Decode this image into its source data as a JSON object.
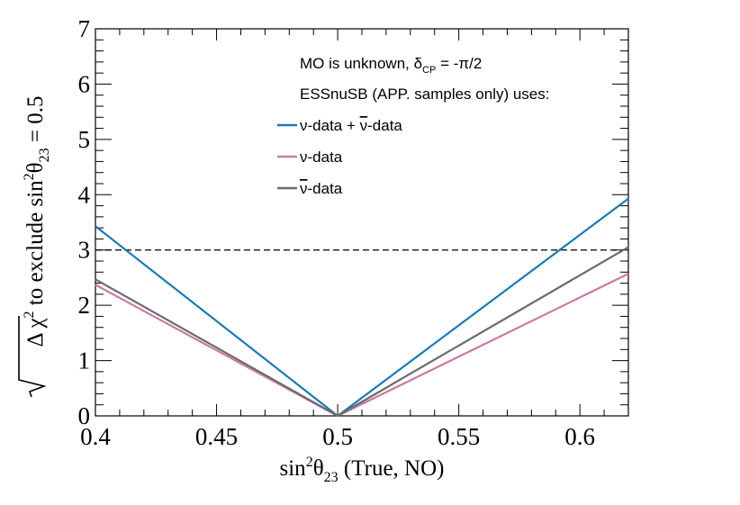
{
  "chart_data": {
    "type": "line",
    "xlabel": {
      "main": "sin",
      "sup": "2",
      "theta": "θ",
      "sub": "23",
      "rest": " (True, NO)"
    },
    "ylabel": {
      "prefix": "Δ χ",
      "sup": "2",
      "mid": " to exclude sin",
      "sup2": "2",
      "theta": "θ",
      "sub": "23",
      "rest": " = 0.5"
    },
    "xlim": [
      0.4,
      0.62
    ],
    "ylim": [
      0,
      7
    ],
    "x_ticks": [
      0.4,
      0.45,
      0.5,
      0.55,
      0.6
    ],
    "x_tick_labels": [
      "0.4",
      "0.45",
      "0.5",
      "0.55",
      "0.6"
    ],
    "y_ticks": [
      0,
      1,
      2,
      3,
      4,
      5,
      6,
      7
    ],
    "y_tick_labels": [
      "0",
      "1",
      "2",
      "3",
      "4",
      "5",
      "6",
      "7"
    ],
    "reference_line": {
      "y": 3,
      "style": "dashed",
      "color": "#000000"
    },
    "annotations": {
      "line1_a": "MO is unknown, δ",
      "line1_sub": "CP",
      "line1_b": " = -π/2",
      "line2": "ESSnuSB (APP. samples only) uses:"
    },
    "series": [
      {
        "name": "ν-data + ν̄-data",
        "legend_a": "ν-data + ",
        "legend_bar": "ν",
        "legend_b": "-data",
        "color": "#1a7ab5",
        "x": [
          0.4,
          0.5,
          0.62
        ],
        "y": [
          3.43,
          0,
          3.93
        ]
      },
      {
        "name": "ν-data",
        "legend_a": "ν-data",
        "legend_bar": "",
        "legend_b": "",
        "color": "#c97aa6",
        "x": [
          0.4,
          0.5,
          0.62
        ],
        "y": [
          2.37,
          0,
          2.57
        ]
      },
      {
        "name": "ν̄-data",
        "legend_a": "",
        "legend_bar": "ν",
        "legend_b": "-data",
        "color": "#6b6b6b",
        "x": [
          0.4,
          0.5,
          0.62
        ],
        "y": [
          2.47,
          0,
          3.05
        ]
      }
    ]
  }
}
